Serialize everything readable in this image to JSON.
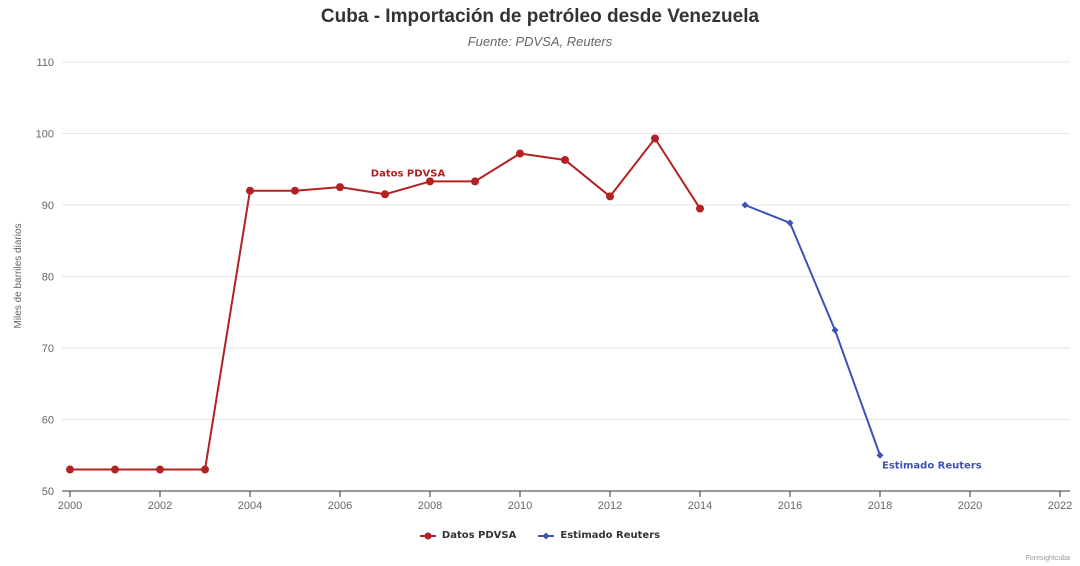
{
  "chart_data": {
    "type": "line",
    "title": "Cuba - Importación de petróleo desde Venezuela",
    "subtitle": "Fuente: PDVSA, Reuters",
    "ylabel": "Miles de barriles diarios",
    "xlabel": "",
    "xlim": [
      2000,
      2022
    ],
    "ylim": [
      50,
      110
    ],
    "x_ticks": [
      "2000",
      "2002",
      "2004",
      "2006",
      "2008",
      "2010",
      "2012",
      "2014",
      "2016",
      "2018",
      "2020",
      "2022"
    ],
    "y_ticks": [
      "50",
      "60",
      "70",
      "80",
      "90",
      "100",
      "110"
    ],
    "grid": "horizontal",
    "legend_position": "bottom",
    "series": [
      {
        "name": "Datos PDVSA",
        "color": "#b22222",
        "marker": "circle",
        "x": [
          2000,
          2001,
          2002,
          2003,
          2004,
          2005,
          2006,
          2007,
          2008,
          2009,
          2010,
          2011,
          2012,
          2013,
          2014
        ],
        "y": [
          53,
          53,
          53,
          53,
          92,
          92,
          92.5,
          91.5,
          93.3,
          93.3,
          97.2,
          96.3,
          91.2,
          99.3,
          89.5
        ]
      },
      {
        "name": "Estimado Reuters",
        "color": "#3f51b5",
        "marker": "diamond",
        "x": [
          2015,
          2016,
          2017,
          2018
        ],
        "y": [
          90,
          87.5,
          72.5,
          55
        ]
      }
    ],
    "annotations": [
      {
        "text": "Datos PDVSA",
        "series": 0,
        "x": 2008,
        "y": 93.3
      },
      {
        "text": "Estimado Reuters",
        "series": 1,
        "x": 2018,
        "y": 55
      }
    ],
    "credit": "Foresightcuba"
  }
}
